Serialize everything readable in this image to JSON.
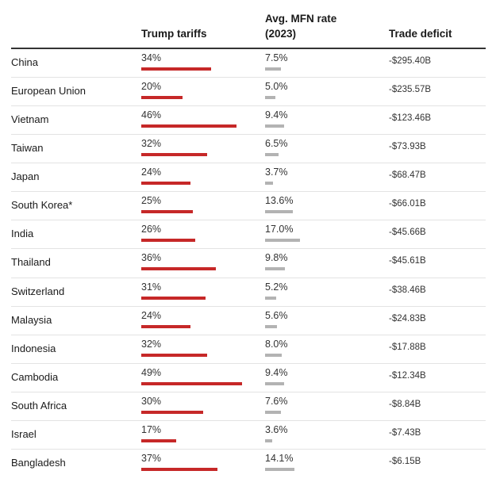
{
  "colors": {
    "tariff_bar": "#c62828",
    "mfn_bar": "#b3b3b3"
  },
  "headers": {
    "tariff": "Trump tariffs",
    "mfn_line1": "Avg. MFN rate",
    "mfn_line2": "(2023)",
    "deficit": "Trade deficit"
  },
  "chart_data": {
    "type": "table",
    "columns": [
      "",
      "Trump tariffs",
      "Avg. MFN rate (2023)",
      "Trade deficit"
    ],
    "rows": [
      {
        "country": "China",
        "tariff": 34,
        "tariff_label": "34%",
        "mfn": 7.5,
        "mfn_label": "7.5%",
        "deficit": "-$295.40B"
      },
      {
        "country": "European Union",
        "tariff": 20,
        "tariff_label": "20%",
        "mfn": 5.0,
        "mfn_label": "5.0%",
        "deficit": "-$235.57B"
      },
      {
        "country": "Vietnam",
        "tariff": 46,
        "tariff_label": "46%",
        "mfn": 9.4,
        "mfn_label": "9.4%",
        "deficit": "-$123.46B"
      },
      {
        "country": "Taiwan",
        "tariff": 32,
        "tariff_label": "32%",
        "mfn": 6.5,
        "mfn_label": "6.5%",
        "deficit": "-$73.93B"
      },
      {
        "country": "Japan",
        "tariff": 24,
        "tariff_label": "24%",
        "mfn": 3.7,
        "mfn_label": "3.7%",
        "deficit": "-$68.47B"
      },
      {
        "country": "South Korea*",
        "tariff": 25,
        "tariff_label": "25%",
        "mfn": 13.6,
        "mfn_label": "13.6%",
        "deficit": "-$66.01B"
      },
      {
        "country": "India",
        "tariff": 26,
        "tariff_label": "26%",
        "mfn": 17.0,
        "mfn_label": "17.0%",
        "deficit": "-$45.66B"
      },
      {
        "country": "Thailand",
        "tariff": 36,
        "tariff_label": "36%",
        "mfn": 9.8,
        "mfn_label": "9.8%",
        "deficit": "-$45.61B"
      },
      {
        "country": "Switzerland",
        "tariff": 31,
        "tariff_label": "31%",
        "mfn": 5.2,
        "mfn_label": "5.2%",
        "deficit": "-$38.46B"
      },
      {
        "country": "Malaysia",
        "tariff": 24,
        "tariff_label": "24%",
        "mfn": 5.6,
        "mfn_label": "5.6%",
        "deficit": "-$24.83B"
      },
      {
        "country": "Indonesia",
        "tariff": 32,
        "tariff_label": "32%",
        "mfn": 8.0,
        "mfn_label": "8.0%",
        "deficit": "-$17.88B"
      },
      {
        "country": "Cambodia",
        "tariff": 49,
        "tariff_label": "49%",
        "mfn": 9.4,
        "mfn_label": "9.4%",
        "deficit": "-$12.34B"
      },
      {
        "country": "South Africa",
        "tariff": 30,
        "tariff_label": "30%",
        "mfn": 7.6,
        "mfn_label": "7.6%",
        "deficit": "-$8.84B"
      },
      {
        "country": "Israel",
        "tariff": 17,
        "tariff_label": "17%",
        "mfn": 3.6,
        "mfn_label": "3.6%",
        "deficit": "-$7.43B"
      },
      {
        "country": "Bangladesh",
        "tariff": 37,
        "tariff_label": "37%",
        "mfn": 14.1,
        "mfn_label": "14.1%",
        "deficit": "-$6.15B"
      }
    ]
  }
}
